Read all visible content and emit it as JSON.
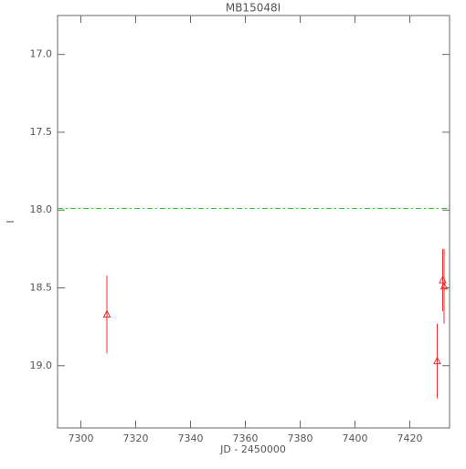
{
  "chart_data": {
    "type": "scatter",
    "title": "MB15048I",
    "x_label": "JD - 2450000",
    "y_label": "I",
    "x": [
      7309.5,
      7430.0,
      7432.0,
      7432.5
    ],
    "series": [
      {
        "name": "I",
        "color": "#e83030",
        "marker": "triangle",
        "values": [
          18.67,
          18.97,
          18.45,
          18.49
        ],
        "errors": [
          0.25,
          0.24,
          0.2,
          0.24
        ]
      }
    ],
    "reference_line": {
      "value": 17.99,
      "color": "#33cc33",
      "style": "dashed"
    },
    "xlim": [
      7291.5,
      7434.5
    ],
    "ylim": [
      19.4,
      16.75
    ],
    "y_inverted": true,
    "xticks": [
      7300,
      7320,
      7340,
      7360,
      7380,
      7400,
      7420
    ],
    "yticks": [
      {
        "value": 17,
        "label": "17.0"
      },
      17.5,
      {
        "value": 18,
        "label": "18.0"
      },
      18.5,
      {
        "value": 19,
        "label": "19.0"
      }
    ]
  }
}
